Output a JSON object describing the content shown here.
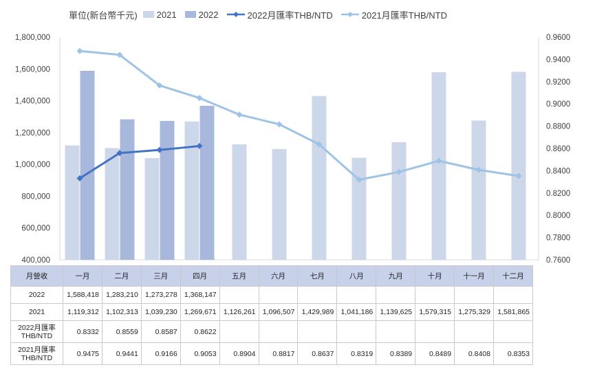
{
  "legend": {
    "unit": "單位(新台幣千元)",
    "items": [
      {
        "label": "2021",
        "kind": "bar",
        "color": "#cdd7ea"
      },
      {
        "label": "2022",
        "kind": "bar",
        "color": "#a8b8dc"
      },
      {
        "label": "2022月匯率THB/NTD",
        "kind": "line",
        "color": "#4472c4"
      },
      {
        "label": "2021月匯率THB/NTD",
        "kind": "line",
        "color": "#9dc3e6"
      }
    ]
  },
  "chart_data": {
    "type": "bar",
    "categories": [
      "一月",
      "二月",
      "三月",
      "四月",
      "五月",
      "六月",
      "七月",
      "八月",
      "九月",
      "十月",
      "十一月",
      "十二月"
    ],
    "series": [
      {
        "name": "2021",
        "type": "bar",
        "axis": "left",
        "color": "#cdd7ea",
        "values": [
          1119312,
          1102313,
          1039230,
          1269671,
          1126261,
          1096507,
          1429989,
          1041186,
          1139625,
          1579315,
          1275329,
          1581865
        ]
      },
      {
        "name": "2022",
        "type": "bar",
        "axis": "left",
        "color": "#a8b8dc",
        "values": [
          1588418,
          1283210,
          1273278,
          1368147,
          null,
          null,
          null,
          null,
          null,
          null,
          null,
          null
        ]
      },
      {
        "name": "2022月匯率THB/NTD",
        "type": "line",
        "axis": "right",
        "color": "#4472c4",
        "values": [
          0.8332,
          0.8559,
          0.8587,
          0.8622,
          null,
          null,
          null,
          null,
          null,
          null,
          null,
          null
        ]
      },
      {
        "name": "2021月匯率THB/NTD",
        "type": "line",
        "axis": "right",
        "color": "#9dc3e6",
        "values": [
          0.9475,
          0.9441,
          0.9166,
          0.9053,
          0.8904,
          0.8817,
          0.8637,
          0.8319,
          0.8389,
          0.8489,
          0.8408,
          0.8353
        ]
      }
    ],
    "ylim_left": [
      400000,
      1800000
    ],
    "ylim_right": [
      0.76,
      0.96
    ],
    "yticks_left": [
      "400,000",
      "600,000",
      "800,000",
      "1,000,000",
      "1,200,000",
      "1,400,000",
      "1,600,000",
      "1,800,000"
    ],
    "yticks_right": [
      "0.7600",
      "0.7800",
      "0.8000",
      "0.8200",
      "0.8400",
      "0.8600",
      "0.8800",
      "0.9000",
      "0.9200",
      "0.9400",
      "0.9600"
    ],
    "grid": false,
    "legend_position": "top"
  },
  "table": {
    "header_label": "月營收",
    "rows": [
      {
        "label": "2022",
        "cells": [
          "1,588,418",
          "1,283,210",
          "1,273,278",
          "1,368,147",
          "",
          "",
          "",
          "",
          "",
          "",
          "",
          ""
        ]
      },
      {
        "label": "2021",
        "cells": [
          "1,119,312",
          "1,102,313",
          "1,039,230",
          "1,269,671",
          "1,126,261",
          "1,096,507",
          "1,429,989",
          "1,041,186",
          "1,139,625",
          "1,579,315",
          "1,275,329",
          "1,581,865"
        ]
      },
      {
        "label": "2022月匯率THB/NTD",
        "cells": [
          "0.8332",
          "0.8559",
          "0.8587",
          "0.8622",
          "",
          "",
          "",
          "",
          "",
          "",
          "",
          ""
        ]
      },
      {
        "label": "2021月匯率THB/NTD",
        "cells": [
          "0.9475",
          "0.9441",
          "0.9166",
          "0.9053",
          "0.8904",
          "0.8817",
          "0.8637",
          "0.8319",
          "0.8389",
          "0.8489",
          "0.8408",
          "0.8353"
        ]
      }
    ]
  }
}
